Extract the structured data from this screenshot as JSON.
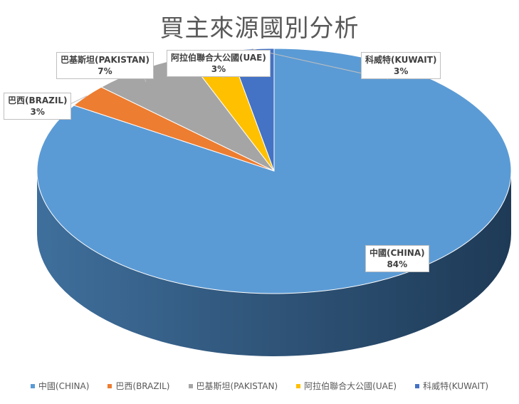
{
  "chart_data": {
    "type": "pie",
    "title": "買主來源國別分析",
    "categories": [
      "中國(CHINA)",
      "巴西(BRAZIL)",
      "巴基斯坦(PAKISTAN)",
      "阿拉伯聯合大公國(UAE)",
      "科威特(KUWAIT)"
    ],
    "values": [
      84,
      3,
      7,
      3,
      3
    ],
    "value_labels": [
      "84%",
      "3%",
      "7%",
      "3%",
      "3%"
    ],
    "colors": [
      "#5b9bd5",
      "#ed7d31",
      "#a5a5a5",
      "#ffc000",
      "#4472c4"
    ],
    "legend_position": "bottom",
    "style": "3d-pie"
  }
}
